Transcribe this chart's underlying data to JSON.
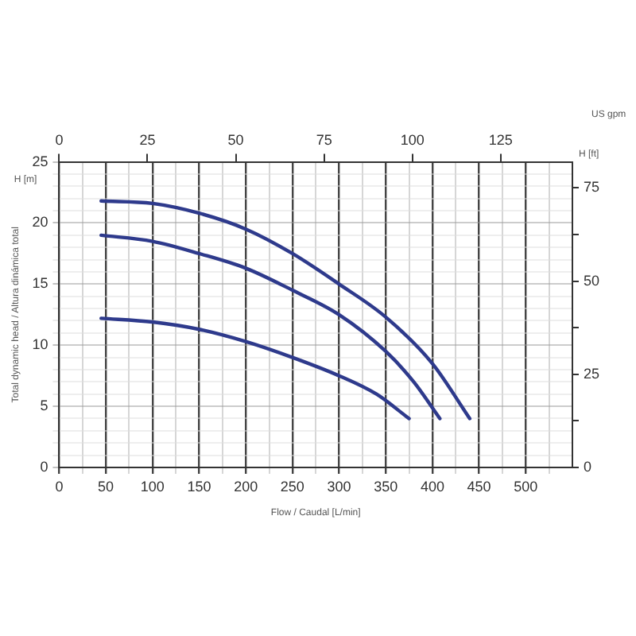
{
  "chart_data": {
    "type": "line",
    "xlabel": "Flow / Caudal [L/min]",
    "ylabel": "Total dynamic head / Altura dinámica total",
    "x2label": "US gpm",
    "y2label": "H [ft]",
    "annotations": [
      "H [m]"
    ],
    "xlim": [
      0,
      550
    ],
    "xticks": [
      0,
      {
        "value": 25,
        "label": null
      },
      50,
      {
        "value": 75,
        "label": null
      },
      100,
      {
        "value": 125,
        "label": null
      },
      150,
      {
        "value": 175,
        "label": null
      },
      200,
      {
        "value": 225,
        "label": null
      },
      250,
      {
        "value": 275,
        "label": null
      },
      300,
      {
        "value": 325,
        "label": null
      },
      350,
      {
        "value": 375,
        "label": null
      },
      400,
      {
        "value": 425,
        "label": null
      },
      450,
      {
        "value": 475,
        "label": null
      },
      500,
      {
        "value": 525,
        "label": null
      }
    ],
    "x2lim": [
      0,
      145.3
    ],
    "x2ticks": [
      0,
      25,
      50,
      75,
      100,
      125
    ],
    "ylim": [
      0,
      25
    ],
    "yticks": [
      0,
      {
        "value": 1,
        "label": null
      },
      {
        "value": 2,
        "label": null
      },
      {
        "value": 3,
        "label": null
      },
      {
        "value": 4,
        "label": null
      },
      5,
      {
        "value": 6,
        "label": null
      },
      {
        "value": 7,
        "label": null
      },
      {
        "value": 8,
        "label": null
      },
      {
        "value": 9,
        "label": null
      },
      10,
      {
        "value": 11,
        "label": null
      },
      {
        "value": 12,
        "label": null
      },
      {
        "value": 13,
        "label": null
      },
      {
        "value": 14,
        "label": null
      },
      15,
      {
        "value": 16,
        "label": null
      },
      {
        "value": 17,
        "label": null
      },
      {
        "value": 18,
        "label": null
      },
      {
        "value": 19,
        "label": null
      },
      20,
      {
        "value": 21,
        "label": null
      },
      {
        "value": 22,
        "label": null
      },
      {
        "value": 23,
        "label": null
      },
      {
        "value": 24,
        "label": null
      },
      25
    ],
    "y2lim": [
      0,
      82
    ],
    "y2ticks": [
      0,
      {
        "value": 12.5,
        "label": null
      },
      25,
      {
        "value": 37.5,
        "label": null
      },
      50,
      {
        "value": 62.5,
        "label": null
      },
      75
    ],
    "grid": true,
    "legend": false,
    "marker": "none",
    "line_style": "solid",
    "series": [
      {
        "color": "#2e3a8c",
        "x": [
          45,
          100,
          150,
          200,
          250,
          300,
          350,
          400,
          440
        ],
        "values": [
          21.8,
          21.6,
          20.8,
          19.5,
          17.5,
          15,
          12.3,
          8.5,
          4
        ]
      },
      {
        "color": "#2e3a8c",
        "x": [
          45,
          100,
          150,
          200,
          250,
          300,
          350,
          380,
          408
        ],
        "values": [
          19,
          18.5,
          17.5,
          16.3,
          14.5,
          12.5,
          9.5,
          7,
          4
        ]
      },
      {
        "color": "#2e3a8c",
        "x": [
          45,
          100,
          150,
          200,
          250,
          300,
          340,
          375
        ],
        "values": [
          12.2,
          11.9,
          11.3,
          10.3,
          9,
          7.5,
          6,
          4
        ]
      }
    ]
  }
}
